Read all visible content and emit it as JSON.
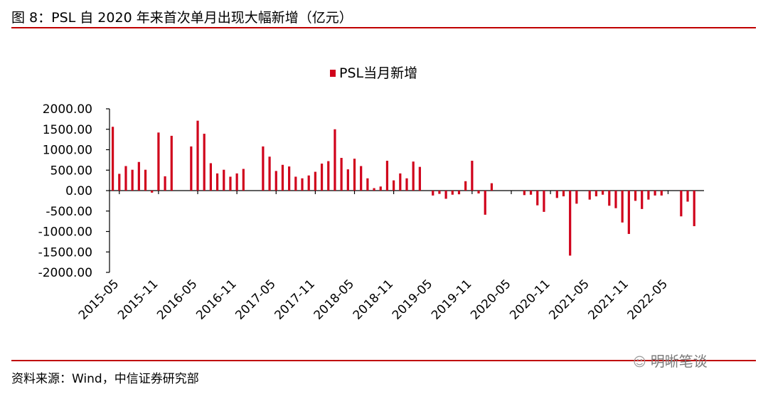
{
  "figure": {
    "title": "图 8：PSL 自 2020 年来首次单月出现大幅新增（亿元）",
    "source": "资料来源：Wind，中信证券研究部",
    "watermark": "明晰笔谈",
    "watermark_icon": "wechat-icon",
    "rule_color": "#c00000"
  },
  "chart_data": {
    "type": "bar",
    "title": "",
    "xlabel": "",
    "ylabel": "",
    "legend_position": "top-center",
    "grid": false,
    "ylim": [
      -2000,
      2000
    ],
    "yticks": [
      "2000.00",
      "1500.00",
      "1000.00",
      "500.00",
      "0.00",
      "-500.00",
      "-1000.00",
      "-1500.00",
      "-2000.00"
    ],
    "ytick_values": [
      2000,
      1500,
      1000,
      500,
      0,
      -500,
      -1000,
      -1500,
      -2000
    ],
    "xtick_labels": [
      "2015-05",
      "2015-11",
      "2016-05",
      "2016-11",
      "2017-05",
      "2017-11",
      "2018-05",
      "2018-11",
      "2019-05",
      "2019-11",
      "2020-05",
      "2020-11",
      "2021-05",
      "2021-11",
      "2022-05"
    ],
    "series": [
      {
        "name": "PSL当月新增",
        "color": "#d0021b",
        "categories": [
          "2015-04",
          "2015-05",
          "2015-06",
          "2015-07",
          "2015-08",
          "2015-09",
          "2015-10",
          "2015-11",
          "2015-12",
          "2016-01",
          "2016-02",
          "2016-03",
          "2016-04",
          "2016-05",
          "2016-06",
          "2016-07",
          "2016-08",
          "2016-09",
          "2016-10",
          "2016-11",
          "2016-12",
          "2017-01",
          "2017-02",
          "2017-03",
          "2017-04",
          "2017-05",
          "2017-06",
          "2017-07",
          "2017-08",
          "2017-09",
          "2017-10",
          "2017-11",
          "2017-12",
          "2018-01",
          "2018-02",
          "2018-03",
          "2018-04",
          "2018-05",
          "2018-06",
          "2018-07",
          "2018-08",
          "2018-09",
          "2018-10",
          "2018-11",
          "2018-12",
          "2019-01",
          "2019-02",
          "2019-03",
          "2019-04",
          "2019-05",
          "2019-06",
          "2019-07",
          "2019-08",
          "2019-09",
          "2019-10",
          "2019-11",
          "2019-12",
          "2020-01",
          "2020-02",
          "2020-03",
          "2020-04",
          "2020-05",
          "2020-06",
          "2020-07",
          "2020-08",
          "2020-09",
          "2020-10",
          "2020-11",
          "2020-12",
          "2021-01",
          "2021-02",
          "2021-03",
          "2021-04",
          "2021-05",
          "2021-06",
          "2021-07",
          "2021-08",
          "2021-09",
          "2021-10",
          "2021-11",
          "2021-12",
          "2022-01",
          "2022-02",
          "2022-03",
          "2022-04",
          "2022-05",
          "2022-06",
          "2022-07",
          "2022-08",
          "2022-09",
          "2022-10"
        ],
        "values": [
          1560,
          410,
          600,
          510,
          700,
          510,
          -50,
          1420,
          350,
          1340,
          0,
          0,
          1080,
          1710,
          1390,
          670,
          420,
          510,
          340,
          420,
          530,
          0,
          0,
          1080,
          830,
          480,
          630,
          590,
          340,
          300,
          370,
          460,
          660,
          720,
          1500,
          800,
          520,
          780,
          600,
          300,
          60,
          100,
          730,
          250,
          420,
          300,
          710,
          580,
          0,
          -120,
          -80,
          -200,
          -100,
          -90,
          230,
          730,
          -70,
          -590,
          180,
          0,
          0,
          0,
          0,
          -110,
          -100,
          -360,
          -520,
          0,
          -180,
          -140,
          -1590,
          -320,
          0,
          -220,
          -140,
          -100,
          -370,
          -430,
          -780,
          -1060,
          -250,
          -450,
          -220,
          -120,
          -120,
          0,
          0,
          -630,
          -270,
          -870,
          0
        ]
      }
    ]
  }
}
